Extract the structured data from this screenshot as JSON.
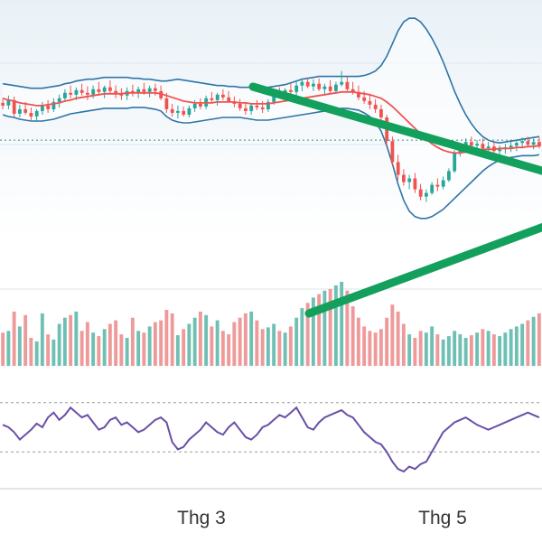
{
  "chart_data": {
    "type": "candlestick",
    "x_axis": {
      "tick_labels": [
        "Thg 3",
        "Thg 5"
      ]
    },
    "colors": {
      "up": "#26a69a",
      "down": "#ef5350",
      "up_volume": "#6fc0b4",
      "down_volume": "#ee9a9a",
      "moving_average": "#ef5350",
      "bollinger_band": "#2f74a8",
      "trendline": "#12a05c",
      "rsi": "#6a4fa6",
      "background_top": "#e9f1f7"
    },
    "candles": [
      [
        147.0,
        152.0,
        140.0,
        144.0
      ],
      [
        144.0,
        155.0,
        140.0,
        150.0
      ],
      [
        150.0,
        154.0,
        132.0,
        135.0
      ],
      [
        135.0,
        145.0,
        131.0,
        140.0
      ],
      [
        140.0,
        148.0,
        134.0,
        136.0
      ],
      [
        136.0,
        142.0,
        128.0,
        132.0
      ],
      [
        132.0,
        140.0,
        126.0,
        138.0
      ],
      [
        138.0,
        148.0,
        134.0,
        144.0
      ],
      [
        144.0,
        150.0,
        136.0,
        140.0
      ],
      [
        140.0,
        152.0,
        137.0,
        148.0
      ],
      [
        148.0,
        156.0,
        142.0,
        152.0
      ],
      [
        152.0,
        162.0,
        148.0,
        158.0
      ],
      [
        158.0,
        166.0,
        152.0,
        156.0
      ],
      [
        156.0,
        164.0,
        150.0,
        161.0
      ],
      [
        161.0,
        168.0,
        155.0,
        158.0
      ],
      [
        158.0,
        165.0,
        150.0,
        156.0
      ],
      [
        156.0,
        166.0,
        152.0,
        162.0
      ],
      [
        162.0,
        170.0,
        155.0,
        159.0
      ],
      [
        159.0,
        166.0,
        152.0,
        164.0
      ],
      [
        164.0,
        172.0,
        158.0,
        160.0
      ],
      [
        160.0,
        166.0,
        152.0,
        157.0
      ],
      [
        157.0,
        163.0,
        150.0,
        155.0
      ],
      [
        155.0,
        164.0,
        150.0,
        160.0
      ],
      [
        160.0,
        167.0,
        154.0,
        158.0
      ],
      [
        158.0,
        165.0,
        152.0,
        162.0
      ],
      [
        162.0,
        169.0,
        156.0,
        159.0
      ],
      [
        159.0,
        166.0,
        153.0,
        163.0
      ],
      [
        163.0,
        168.0,
        155.0,
        160.0
      ],
      [
        160.0,
        166.0,
        150.0,
        152.0
      ],
      [
        152.0,
        158.0,
        136.0,
        140.0
      ],
      [
        140.0,
        146.0,
        132.0,
        136.0
      ],
      [
        136.0,
        144.0,
        130.0,
        138.0
      ],
      [
        138.0,
        143.0,
        132.0,
        134.0
      ],
      [
        134.0,
        144.0,
        131.0,
        141.0
      ],
      [
        141.0,
        150.0,
        137.0,
        146.0
      ],
      [
        146.0,
        152.0,
        140.0,
        143.0
      ],
      [
        143.0,
        155.0,
        140.0,
        152.0
      ],
      [
        152.0,
        159.0,
        147.0,
        150.0
      ],
      [
        150.0,
        158.0,
        144.0,
        156.0
      ],
      [
        156.0,
        162.0,
        150.0,
        153.0
      ],
      [
        153.0,
        160.0,
        148.0,
        148.0
      ],
      [
        148.0,
        154.0,
        142.0,
        146.0
      ],
      [
        146.0,
        151.0,
        138.0,
        141.0
      ],
      [
        141.0,
        147.0,
        134.0,
        138.0
      ],
      [
        138.0,
        146.0,
        134.0,
        144.0
      ],
      [
        144.0,
        150.0,
        139.0,
        142.0
      ],
      [
        142.0,
        149.0,
        136.0,
        140.0
      ],
      [
        140.0,
        151.0,
        137.0,
        148.0
      ],
      [
        148.0,
        160.0,
        145.0,
        157.0
      ],
      [
        157.0,
        164.0,
        152.0,
        155.0
      ],
      [
        155.0,
        163.0,
        150.0,
        161.0
      ],
      [
        161.0,
        168.0,
        156.0,
        159.0
      ],
      [
        159.0,
        170.0,
        155.0,
        166.0
      ],
      [
        166.0,
        174.0,
        160.0,
        170.0
      ],
      [
        170.0,
        174.0,
        163.0,
        165.0
      ],
      [
        165.0,
        173.0,
        160.0,
        168.0
      ],
      [
        168.0,
        174.0,
        160.0,
        162.0
      ],
      [
        162.0,
        168.0,
        155.0,
        165.0
      ],
      [
        165.0,
        172.0,
        158.0,
        160.0
      ],
      [
        160.0,
        170.0,
        157.0,
        167.0
      ],
      [
        167.0,
        182.0,
        165.0,
        170.0
      ],
      [
        170.0,
        176.0,
        160.0,
        162.0
      ],
      [
        162.0,
        170.0,
        156.0,
        159.0
      ],
      [
        159.0,
        166.0,
        150.0,
        153.0
      ],
      [
        153.0,
        160.0,
        146.0,
        149.0
      ],
      [
        149.0,
        156.0,
        140.0,
        145.0
      ],
      [
        145.0,
        151.0,
        136.0,
        140.0
      ],
      [
        140.0,
        145.0,
        128.0,
        131.0
      ],
      [
        131.0,
        134.0,
        100.0,
        105.0
      ],
      [
        105.0,
        110.0,
        78.0,
        82.0
      ],
      [
        82.0,
        90.0,
        62.0,
        68.0
      ],
      [
        68.0,
        74.0,
        56.0,
        60.0
      ],
      [
        60.0,
        68.0,
        52.0,
        64.0
      ],
      [
        64.0,
        70.0,
        48.0,
        52.0
      ],
      [
        52.0,
        58.0,
        40.0,
        44.0
      ],
      [
        44.0,
        52.0,
        38.0,
        48.0
      ],
      [
        48.0,
        60.0,
        46.0,
        57.0
      ],
      [
        57.0,
        64.0,
        50.0,
        55.0
      ],
      [
        55.0,
        66.0,
        52.0,
        62.0
      ],
      [
        62.0,
        75.0,
        60.0,
        72.0
      ],
      [
        72.0,
        95.0,
        70.0,
        92.0
      ],
      [
        92.0,
        102.0,
        88.0,
        98.0
      ],
      [
        98.0,
        108.0,
        94.0,
        104.0
      ],
      [
        104.0,
        110.0,
        98.0,
        100.0
      ],
      [
        100.0,
        106.0,
        94.0,
        102.0
      ],
      [
        102.0,
        108.0,
        95.0,
        97.0
      ],
      [
        97.0,
        104.0,
        90.0,
        99.0
      ],
      [
        99.0,
        104.0,
        92.0,
        94.0
      ],
      [
        94.0,
        100.0,
        88.0,
        96.0
      ],
      [
        96.0,
        102.0,
        91.0,
        98.0
      ],
      [
        98.0,
        104.0,
        93.0,
        100.0
      ],
      [
        100.0,
        106.0,
        94.0,
        103.0
      ],
      [
        103.0,
        109.0,
        97.0,
        105.0
      ],
      [
        105.0,
        110.0,
        98.0,
        101.0
      ],
      [
        101.0,
        108.0,
        96.0,
        104.0
      ],
      [
        104.0,
        110.0,
        97.0,
        99.0
      ]
    ],
    "moving_average": [
      152.0,
      150.0,
      149.0,
      147.0,
      146.0,
      145.0,
      144.0,
      144.0,
      145.0,
      146.0,
      147.0,
      149.0,
      150.0,
      152.0,
      153.0,
      154.0,
      155.0,
      156.0,
      157.0,
      157.0,
      157.0,
      157.0,
      158.0,
      158.0,
      158.0,
      158.0,
      158.0,
      158.0,
      157.0,
      155.0,
      153.0,
      151.0,
      149.0,
      148.0,
      147.0,
      147.0,
      147.0,
      147.0,
      148.0,
      148.0,
      148.0,
      148.0,
      147.0,
      147.0,
      146.0,
      146.0,
      146.0,
      146.0,
      147.0,
      148.0,
      149.0,
      150.0,
      151.0,
      152.0,
      153.0,
      154.0,
      155.0,
      156.0,
      157.0,
      158.0,
      159.0,
      159.0,
      159.0,
      158.0,
      157.0,
      156.0,
      154.0,
      152.0,
      148.0,
      143.0,
      137.0,
      131.0,
      125.0,
      119.0,
      113.0,
      107.0,
      102.0,
      98.0,
      95.0,
      93.0,
      92.0,
      92.0,
      93.0,
      94.0,
      95.0,
      96.0,
      96.0,
      96.0,
      97.0,
      97.0,
      97.0,
      98.0,
      98.0,
      99.0,
      99.0,
      100.0
    ],
    "bollinger_upper": [
      168.0,
      167.0,
      166.0,
      165.0,
      164.0,
      163.0,
      163.0,
      163.0,
      164.0,
      165.0,
      166.0,
      168.0,
      169.0,
      171.0,
      172.0,
      173.0,
      173.0,
      174.0,
      175.0,
      175.0,
      175.0,
      175.0,
      175.0,
      174.0,
      174.0,
      173.0,
      173.0,
      172.0,
      171.0,
      171.0,
      172.0,
      173.0,
      172.0,
      171.0,
      170.0,
      169.0,
      168.0,
      167.0,
      166.0,
      166.0,
      165.0,
      165.0,
      164.0,
      164.0,
      164.0,
      164.0,
      164.0,
      164.0,
      165.0,
      166.0,
      167.0,
      169.0,
      171.0,
      173.0,
      174.0,
      175.0,
      176.0,
      176.0,
      176.0,
      176.0,
      176.0,
      176.0,
      176.0,
      176.0,
      177.0,
      179.0,
      182.0,
      188.0,
      198.0,
      212.0,
      226.0,
      236.0,
      240.0,
      240.0,
      236.0,
      228.0,
      218.0,
      206.0,
      192.0,
      176.0,
      160.0,
      146.0,
      134.0,
      124.0,
      116.0,
      110.0,
      106.0,
      104.0,
      103.0,
      104.0,
      105.0,
      106.0,
      107.0,
      108.0,
      109.0,
      110.0
    ],
    "bollinger_lower": [
      134.0,
      132.0,
      131.0,
      129.0,
      128.0,
      127.0,
      127.0,
      127.0,
      128.0,
      129.0,
      131.0,
      133.0,
      135.0,
      136.0,
      137.0,
      138.0,
      139.0,
      140.0,
      141.0,
      141.0,
      141.0,
      141.0,
      141.0,
      142.0,
      142.0,
      142.0,
      141.0,
      140.0,
      138.0,
      132.0,
      128.0,
      126.0,
      125.0,
      125.0,
      126.0,
      127.0,
      128.0,
      129.0,
      130.0,
      131.0,
      131.0,
      131.0,
      131.0,
      130.0,
      129.0,
      128.0,
      128.0,
      128.0,
      129.0,
      130.0,
      131.0,
      132.0,
      133.0,
      134.0,
      135.0,
      136.0,
      137.0,
      138.0,
      139.0,
      140.0,
      141.0,
      141.0,
      140.0,
      139.0,
      136.0,
      132.0,
      126.0,
      116.0,
      100.0,
      80.0,
      58.0,
      40.0,
      28.0,
      22.0,
      20.0,
      20.0,
      22.0,
      26.0,
      30.0,
      36.0,
      42.0,
      48.0,
      54.0,
      60.0,
      66.0,
      72.0,
      77.0,
      81.0,
      84.0,
      86.0,
      87.0,
      88.0,
      89.0,
      89.0,
      89.0,
      90.0
    ],
    "trendlines": [
      {
        "from": [
          0,
          130.0
        ],
        "to": [
          190,
          155.0
        ],
        "from_index": 47,
        "to_index": 98
      },
      {
        "from": [
          0,
          128.0
        ],
        "to": [
          190,
          105.0
        ],
        "from_index": 47,
        "to_index": 98
      }
    ],
    "price_range": [
      0,
      260
    ],
    "reference_price": 106,
    "volume": [
      38,
      40,
      62,
      45,
      58,
      32,
      28,
      60,
      36,
      30,
      48,
      55,
      58,
      62,
      40,
      50,
      38,
      34,
      42,
      48,
      52,
      36,
      32,
      55,
      40,
      38,
      45,
      50,
      52,
      64,
      60,
      35,
      42,
      48,
      55,
      62,
      58,
      45,
      52,
      40,
      36,
      50,
      55,
      60,
      62,
      52,
      42,
      44,
      48,
      40,
      38,
      45,
      55,
      66,
      72,
      78,
      82,
      86,
      88,
      92,
      96,
      86,
      68,
      55,
      45,
      40,
      38,
      42,
      55,
      70,
      62,
      48,
      36,
      32,
      40,
      38,
      45,
      36,
      30,
      34,
      40,
      36,
      32,
      35,
      38,
      42,
      40,
      36,
      34,
      38,
      42,
      45,
      48,
      52,
      56,
      60
    ],
    "volume_range": [
      0,
      160
    ],
    "rsi": [
      52,
      50,
      46,
      40,
      44,
      48,
      53,
      50,
      58,
      62,
      56,
      60,
      66,
      62,
      58,
      60,
      54,
      48,
      50,
      56,
      58,
      52,
      54,
      50,
      46,
      48,
      52,
      56,
      58,
      54,
      38,
      32,
      34,
      40,
      44,
      48,
      54,
      50,
      46,
      44,
      50,
      54,
      48,
      42,
      40,
      44,
      50,
      52,
      56,
      60,
      58,
      62,
      66,
      58,
      50,
      48,
      54,
      58,
      60,
      62,
      64,
      60,
      58,
      52,
      46,
      42,
      38,
      36,
      30,
      22,
      16,
      14,
      18,
      16,
      20,
      22,
      30,
      38,
      46,
      50,
      54,
      56,
      58,
      55,
      52,
      50,
      48,
      50,
      52,
      54,
      56,
      58,
      60,
      62,
      60,
      58
    ],
    "rsi_range": [
      0,
      100
    ],
    "rsi_levels": [
      30,
      70
    ]
  }
}
